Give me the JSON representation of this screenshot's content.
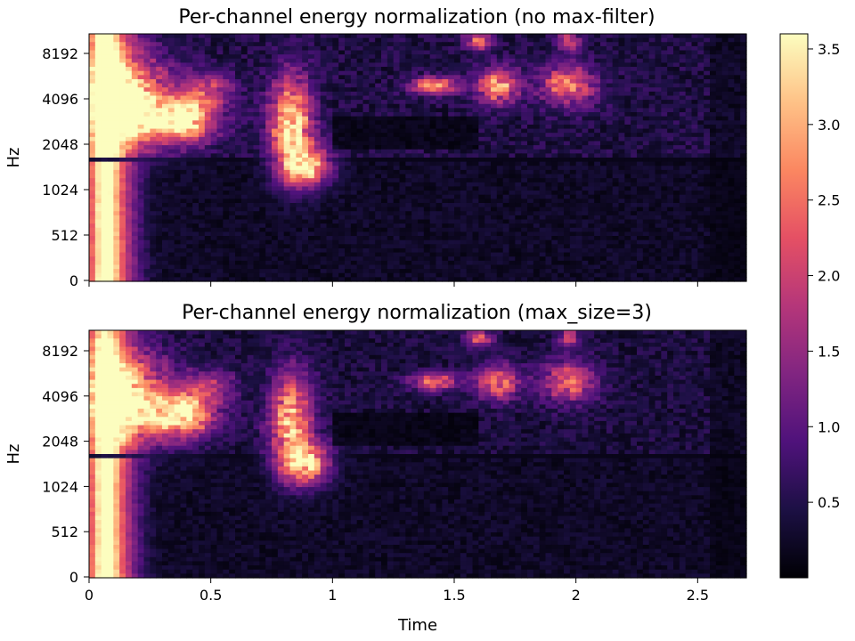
{
  "chart_data": [
    {
      "type": "heatmap",
      "title": "Per-channel energy normalization (no max-filter)",
      "xlabel": "",
      "ylabel": "Hz",
      "xlim": [
        0,
        2.7
      ],
      "x_ticks": [
        0,
        0.5,
        1,
        1.5,
        2,
        2.5
      ],
      "x_tick_labels_visible": false,
      "y_scale": "log2-mel",
      "y_ticks": [
        0,
        512,
        1024,
        2048,
        4096,
        8192
      ],
      "y_tick_labels": [
        "0",
        "512",
        "1024",
        "2048",
        "4096",
        "8192"
      ],
      "colormap": "magma",
      "value_range": [
        0,
        3.6
      ]
    },
    {
      "type": "heatmap",
      "title": "Per-channel energy normalization (max_size=3)",
      "xlabel": "Time",
      "ylabel": "Hz",
      "xlim": [
        0,
        2.7
      ],
      "x_ticks": [
        0,
        0.5,
        1,
        1.5,
        2,
        2.5
      ],
      "x_tick_labels": [
        "0",
        "0.5",
        "1",
        "1.5",
        "2",
        "2.5"
      ],
      "y_scale": "log2-mel",
      "y_ticks": [
        0,
        512,
        1024,
        2048,
        4096,
        8192
      ],
      "y_tick_labels": [
        "0",
        "512",
        "1024",
        "2048",
        "4096",
        "8192"
      ],
      "colormap": "magma",
      "value_range": [
        0,
        3.6
      ]
    }
  ],
  "colorbar": {
    "ticks": [
      0.5,
      1.0,
      1.5,
      2.0,
      2.5,
      3.0,
      3.5
    ],
    "tick_labels": [
      "0.5",
      "1.0",
      "1.5",
      "2.0",
      "2.5",
      "3.0",
      "3.5"
    ],
    "range": [
      0,
      3.6
    ],
    "colors": [
      "#000004",
      "#1c1044",
      "#4f127b",
      "#812581",
      "#b5367a",
      "#e55064",
      "#fb8761",
      "#fec287",
      "#fcfdbf"
    ]
  }
}
